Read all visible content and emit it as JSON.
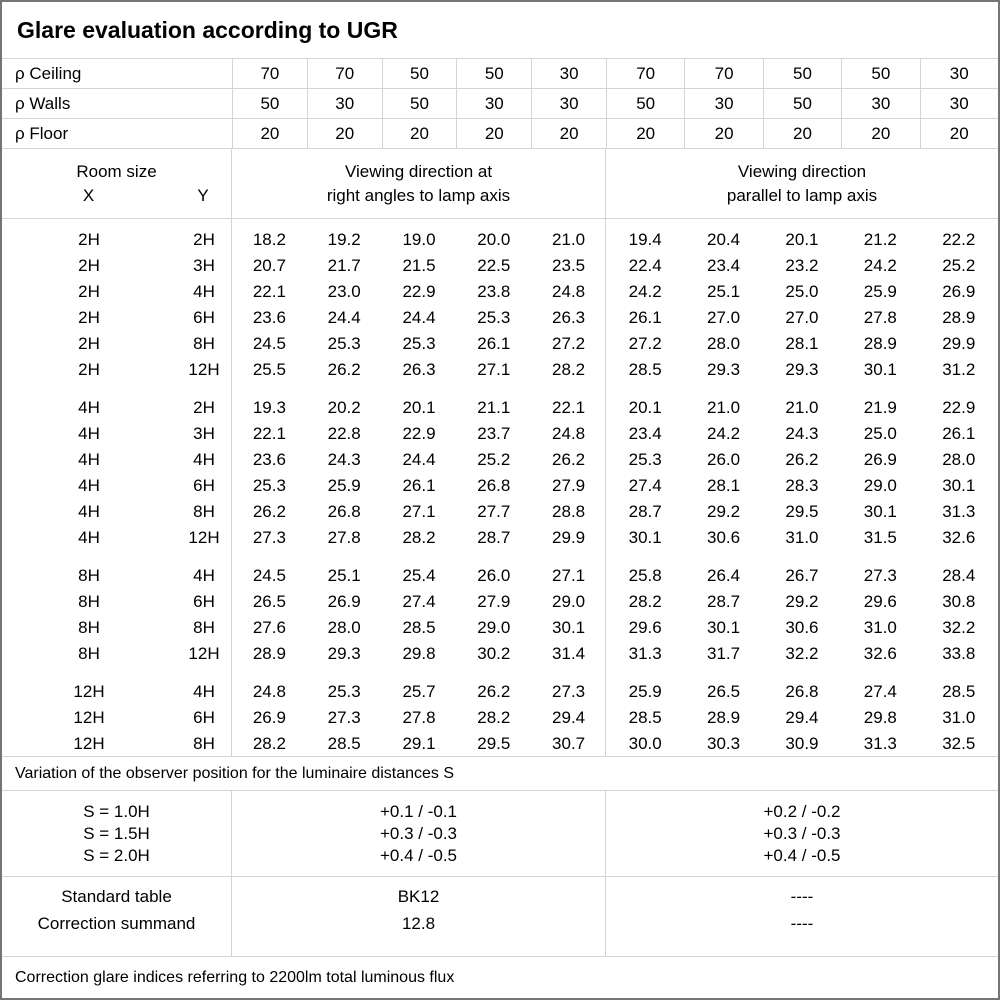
{
  "title": "Glare evaluation according to UGR",
  "reflectance": {
    "rows": [
      {
        "label": "ρ Ceiling",
        "values": [
          "70",
          "70",
          "50",
          "50",
          "30",
          "70",
          "70",
          "50",
          "50",
          "30"
        ]
      },
      {
        "label": "ρ Walls",
        "values": [
          "50",
          "30",
          "50",
          "30",
          "30",
          "50",
          "30",
          "50",
          "30",
          "30"
        ]
      },
      {
        "label": "ρ Floor",
        "values": [
          "20",
          "20",
          "20",
          "20",
          "20",
          "20",
          "20",
          "20",
          "20",
          "20"
        ]
      }
    ]
  },
  "room_header": {
    "room_size_label": "Room size",
    "x_label": "X",
    "y_label": "Y",
    "right_angles_title_line1": "Viewing direction at",
    "right_angles_title_line2": "right angles to lamp axis",
    "parallel_title_line1": "Viewing direction",
    "parallel_title_line2": "parallel to lamp axis"
  },
  "ugr_table": {
    "blocks": [
      {
        "rows": [
          {
            "x": "2H",
            "y": "2H",
            "right_angles": [
              "18.2",
              "19.2",
              "19.0",
              "20.0",
              "21.0"
            ],
            "parallel": [
              "19.4",
              "20.4",
              "20.1",
              "21.2",
              "22.2"
            ]
          },
          {
            "x": "2H",
            "y": "3H",
            "right_angles": [
              "20.7",
              "21.7",
              "21.5",
              "22.5",
              "23.5"
            ],
            "parallel": [
              "22.4",
              "23.4",
              "23.2",
              "24.2",
              "25.2"
            ]
          },
          {
            "x": "2H",
            "y": "4H",
            "right_angles": [
              "22.1",
              "23.0",
              "22.9",
              "23.8",
              "24.8"
            ],
            "parallel": [
              "24.2",
              "25.1",
              "25.0",
              "25.9",
              "26.9"
            ]
          },
          {
            "x": "2H",
            "y": "6H",
            "right_angles": [
              "23.6",
              "24.4",
              "24.4",
              "25.3",
              "26.3"
            ],
            "parallel": [
              "26.1",
              "27.0",
              "27.0",
              "27.8",
              "28.9"
            ]
          },
          {
            "x": "2H",
            "y": "8H",
            "right_angles": [
              "24.5",
              "25.3",
              "25.3",
              "26.1",
              "27.2"
            ],
            "parallel": [
              "27.2",
              "28.0",
              "28.1",
              "28.9",
              "29.9"
            ]
          },
          {
            "x": "2H",
            "y": "12H",
            "right_angles": [
              "25.5",
              "26.2",
              "26.3",
              "27.1",
              "28.2"
            ],
            "parallel": [
              "28.5",
              "29.3",
              "29.3",
              "30.1",
              "31.2"
            ]
          }
        ]
      },
      {
        "rows": [
          {
            "x": "4H",
            "y": "2H",
            "right_angles": [
              "19.3",
              "20.2",
              "20.1",
              "21.1",
              "22.1"
            ],
            "parallel": [
              "20.1",
              "21.0",
              "21.0",
              "21.9",
              "22.9"
            ]
          },
          {
            "x": "4H",
            "y": "3H",
            "right_angles": [
              "22.1",
              "22.8",
              "22.9",
              "23.7",
              "24.8"
            ],
            "parallel": [
              "23.4",
              "24.2",
              "24.3",
              "25.0",
              "26.1"
            ]
          },
          {
            "x": "4H",
            "y": "4H",
            "right_angles": [
              "23.6",
              "24.3",
              "24.4",
              "25.2",
              "26.2"
            ],
            "parallel": [
              "25.3",
              "26.0",
              "26.2",
              "26.9",
              "28.0"
            ]
          },
          {
            "x": "4H",
            "y": "6H",
            "right_angles": [
              "25.3",
              "25.9",
              "26.1",
              "26.8",
              "27.9"
            ],
            "parallel": [
              "27.4",
              "28.1",
              "28.3",
              "29.0",
              "30.1"
            ]
          },
          {
            "x": "4H",
            "y": "8H",
            "right_angles": [
              "26.2",
              "26.8",
              "27.1",
              "27.7",
              "28.8"
            ],
            "parallel": [
              "28.7",
              "29.2",
              "29.5",
              "30.1",
              "31.3"
            ]
          },
          {
            "x": "4H",
            "y": "12H",
            "right_angles": [
              "27.3",
              "27.8",
              "28.2",
              "28.7",
              "29.9"
            ],
            "parallel": [
              "30.1",
              "30.6",
              "31.0",
              "31.5",
              "32.6"
            ]
          }
        ]
      },
      {
        "rows": [
          {
            "x": "8H",
            "y": "4H",
            "right_angles": [
              "24.5",
              "25.1",
              "25.4",
              "26.0",
              "27.1"
            ],
            "parallel": [
              "25.8",
              "26.4",
              "26.7",
              "27.3",
              "28.4"
            ]
          },
          {
            "x": "8H",
            "y": "6H",
            "right_angles": [
              "26.5",
              "26.9",
              "27.4",
              "27.9",
              "29.0"
            ],
            "parallel": [
              "28.2",
              "28.7",
              "29.2",
              "29.6",
              "30.8"
            ]
          },
          {
            "x": "8H",
            "y": "8H",
            "right_angles": [
              "27.6",
              "28.0",
              "28.5",
              "29.0",
              "30.1"
            ],
            "parallel": [
              "29.6",
              "30.1",
              "30.6",
              "31.0",
              "32.2"
            ]
          },
          {
            "x": "8H",
            "y": "12H",
            "right_angles": [
              "28.9",
              "29.3",
              "29.8",
              "30.2",
              "31.4"
            ],
            "parallel": [
              "31.3",
              "31.7",
              "32.2",
              "32.6",
              "33.8"
            ]
          }
        ]
      },
      {
        "rows": [
          {
            "x": "12H",
            "y": "4H",
            "right_angles": [
              "24.8",
              "25.3",
              "25.7",
              "26.2",
              "27.3"
            ],
            "parallel": [
              "25.9",
              "26.5",
              "26.8",
              "27.4",
              "28.5"
            ]
          },
          {
            "x": "12H",
            "y": "6H",
            "right_angles": [
              "26.9",
              "27.3",
              "27.8",
              "28.2",
              "29.4"
            ],
            "parallel": [
              "28.5",
              "28.9",
              "29.4",
              "29.8",
              "31.0"
            ]
          },
          {
            "x": "12H",
            "y": "8H",
            "right_angles": [
              "28.2",
              "28.5",
              "29.1",
              "29.5",
              "30.7"
            ],
            "parallel": [
              "30.0",
              "30.3",
              "30.9",
              "31.3",
              "32.5"
            ]
          }
        ]
      }
    ]
  },
  "variation": {
    "note": "Variation of the observer position for the luminaire distances S",
    "rows": [
      {
        "s": "S = 1.0H",
        "right_angles": "+0.1 / -0.1",
        "parallel": "+0.2 / -0.2"
      },
      {
        "s": "S = 1.5H",
        "right_angles": "+0.3 / -0.3",
        "parallel": "+0.3 / -0.3"
      },
      {
        "s": "S = 2.0H",
        "right_angles": "+0.4 / -0.5",
        "parallel": "+0.4 / -0.5"
      }
    ]
  },
  "summary": {
    "rows": [
      {
        "label": "Standard table",
        "right_angles": "BK12",
        "parallel": "----"
      },
      {
        "label": "Correction summand",
        "right_angles": "12.8",
        "parallel": "----"
      }
    ]
  },
  "footer_note": "Correction glare indices referring to 2200lm total luminous flux",
  "colors": {
    "grid_line": "#d4d4d4",
    "outer_border": "#757575",
    "text": "#000000",
    "background": "#ffffff"
  }
}
